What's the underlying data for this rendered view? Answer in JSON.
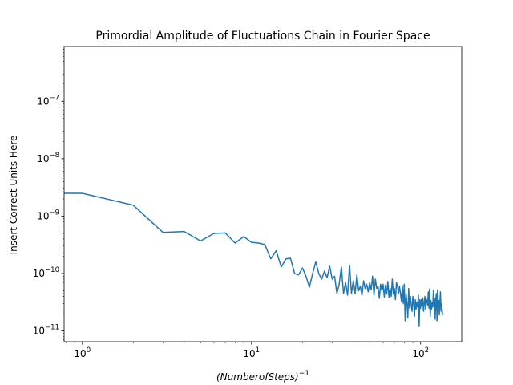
{
  "chart_data": {
    "type": "line",
    "title": "Primordial Amplitude of Fluctuations Chain in Fourier Space",
    "xlabel_base": "(NumberofSteps)",
    "xlabel_exp": "−1",
    "ylabel": "Insert Correct Units Here",
    "x_scale": "log",
    "y_scale": "log",
    "xlim": [
      0.78,
      175
    ],
    "ylim": [
      6.5e-12,
      9e-07
    ],
    "grid": false,
    "line_color": "#1f77b4",
    "x_ticks": [
      {
        "value": 1,
        "base": "10",
        "exp": "0"
      },
      {
        "value": 10,
        "base": "10",
        "exp": "1"
      },
      {
        "value": 100,
        "base": "10",
        "exp": "2"
      }
    ],
    "y_ticks": [
      {
        "value": 1e-11,
        "base": "10",
        "exp": "−11"
      },
      {
        "value": 1e-10,
        "base": "10",
        "exp": "−10"
      },
      {
        "value": 1e-09,
        "base": "10",
        "exp": "−9"
      },
      {
        "value": 1e-08,
        "base": "10",
        "exp": "−8"
      },
      {
        "value": 1e-07,
        "base": "10",
        "exp": "−7"
      }
    ],
    "series": [
      {
        "x": [
          0,
          1,
          2,
          3,
          4,
          5,
          6,
          7,
          8,
          9,
          10,
          11,
          12,
          13,
          14,
          15,
          16,
          17,
          18,
          19,
          20,
          21,
          22,
          23,
          24,
          25,
          26,
          27,
          28,
          29,
          30,
          31,
          32,
          33,
          34,
          35,
          36,
          37,
          38,
          39,
          40,
          41,
          42,
          43,
          44,
          45,
          46,
          47,
          48,
          49,
          50,
          51,
          52,
          53,
          54,
          55,
          56,
          57,
          58,
          59,
          60,
          61,
          62,
          63,
          64,
          65,
          66,
          67,
          68,
          69,
          70,
          71,
          72,
          73,
          74,
          75,
          76,
          77,
          78,
          79,
          80,
          81,
          82,
          83,
          84,
          85,
          86,
          87,
          88,
          89,
          90,
          91,
          92,
          93,
          94,
          95,
          96,
          97,
          98,
          99,
          100,
          101,
          102,
          103,
          104,
          105,
          106,
          107,
          108,
          109,
          110,
          111,
          112,
          113,
          114,
          115,
          116,
          117,
          118,
          119,
          120,
          121,
          122,
          123,
          124,
          125,
          126,
          127,
          128,
          129,
          130,
          131,
          132,
          133,
          134,
          135
        ],
        "values": [
          2.5e-09,
          2.5e-09,
          1.55e-09,
          5.2e-10,
          5.4e-10,
          3.7e-10,
          5e-10,
          5.1e-10,
          3.4e-10,
          4.4e-10,
          3.5e-10,
          3.4e-10,
          3.2e-10,
          1.8e-10,
          2.5e-10,
          1.3e-10,
          1.8e-10,
          1.85e-10,
          1e-10,
          9.5e-11,
          1.25e-10,
          9e-11,
          5.8e-11,
          1e-10,
          1.6e-10,
          1e-10,
          8e-11,
          1.1e-10,
          8.5e-11,
          1.35e-10,
          8e-11,
          9e-11,
          4.5e-11,
          6.5e-11,
          1.3e-10,
          4.5e-11,
          7e-11,
          4.2e-11,
          1.4e-10,
          4.5e-11,
          7.5e-11,
          4.5e-11,
          9.5e-11,
          5e-11,
          6e-11,
          4.2e-11,
          7.5e-11,
          5.5e-11,
          6.5e-11,
          4.8e-11,
          7e-11,
          5.2e-11,
          9e-11,
          4.2e-11,
          8e-11,
          5.5e-11,
          6e-11,
          3.7e-11,
          6.5e-11,
          5e-11,
          6.5e-11,
          3.9e-11,
          6.3e-11,
          4.4e-11,
          7.3e-11,
          3.8e-11,
          5.5e-11,
          4e-11,
          8e-11,
          4.4e-11,
          5.5e-11,
          3.5e-11,
          7e-11,
          6e-11,
          4.5e-11,
          6e-11,
          4.5e-11,
          3.3e-11,
          6.2e-11,
          3e-11,
          6.5e-11,
          1.5e-11,
          4.5e-11,
          3e-11,
          1.7e-11,
          5.5e-11,
          2.5e-11,
          4e-11,
          2.8e-11,
          2.2e-11,
          4e-11,
          3e-11,
          1.8e-11,
          3.5e-11,
          2.4e-11,
          3.2e-11,
          2.6e-11,
          4.2e-11,
          1.2e-11,
          3.5e-11,
          2.5e-11,
          3.5e-11,
          2.7e-11,
          3.8e-11,
          2.2e-11,
          3e-11,
          4e-11,
          2.4e-11,
          3.6e-11,
          3.3e-11,
          2.8e-11,
          4.8e-11,
          2.5e-11,
          5.4e-11,
          1.8e-11,
          3.4e-11,
          2.4e-11,
          3.1e-11,
          2.6e-11,
          5e-11,
          2.7e-11,
          3.6e-11,
          1.6e-11,
          3.6e-11,
          4.5e-11,
          1.5e-11,
          5.2e-11,
          2.6e-11,
          3.4e-11,
          1.9e-11,
          3.3e-11,
          4.8e-11,
          2.2e-11,
          3e-11,
          2.3e-11,
          1.9e-11
        ]
      }
    ]
  }
}
